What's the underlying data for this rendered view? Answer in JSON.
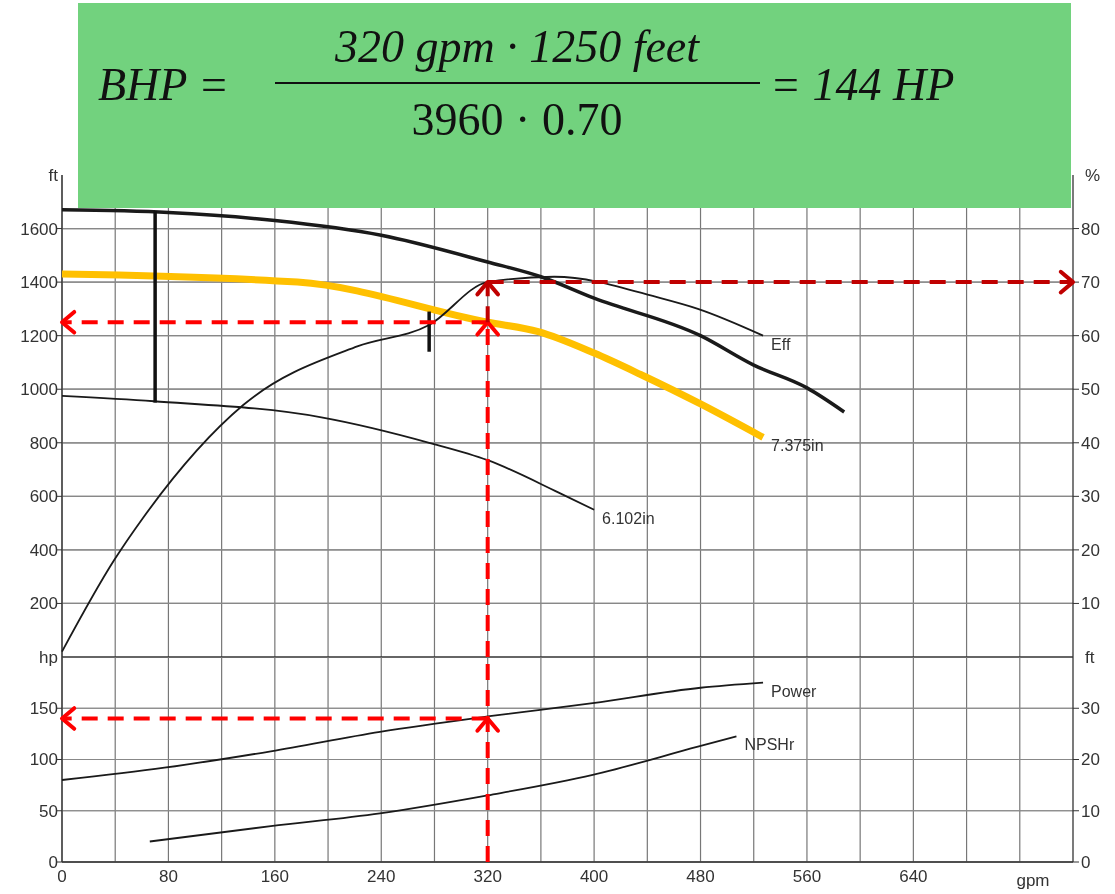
{
  "chart_data": [
    {
      "type": "line",
      "ylabel": "ft",
      "y2label": "%",
      "xlim": [
        0,
        760
      ],
      "ylim": [
        0,
        1800
      ],
      "y2lim": [
        0,
        90
      ],
      "xticks": [
        0,
        {
          "value": 40,
          "label": null
        },
        80,
        {
          "value": 120,
          "label": null
        },
        160,
        {
          "value": 200,
          "label": null
        },
        240,
        {
          "value": 280,
          "label": null
        },
        320,
        {
          "value": 360,
          "label": null
        },
        400,
        {
          "value": 440,
          "label": null
        },
        480,
        {
          "value": 520,
          "label": null
        },
        560,
        {
          "value": 600,
          "label": null
        },
        640,
        {
          "value": 680,
          "label": null
        },
        {
          "value": 720,
          "label": null
        }
      ],
      "yticks": [
        200,
        400,
        600,
        800,
        1000,
        1200,
        1400,
        1600
      ],
      "y2ticks": [
        10,
        20,
        30,
        40,
        50,
        60,
        70,
        80
      ],
      "grid": true,
      "tick_labels": "y",
      "annotations": [
        "BHP =",
        "320 gpm · 1250 feet",
        "3960 · 0.70",
        "= 144 HP"
      ],
      "series": [
        {
          "color": "#1a1a1a",
          "x": [
            0,
            80,
            160,
            240,
            320,
            360,
            400,
            480,
            520,
            560,
            588
          ],
          "values": [
            1670,
            1660,
            1630,
            1575,
            1475,
            1420,
            1340,
            1200,
            1090,
            1005,
            915
          ]
        },
        {
          "name": "7.375in",
          "color": "#ffc000",
          "x": [
            0,
            177,
            320,
            358,
            400,
            435,
            480,
            527
          ],
          "values": [
            1430,
            1400,
            1250,
            1215,
            1135,
            1055,
            945,
            820
          ]
        },
        {
          "name": "6.102in",
          "color": "#1a1a1a",
          "x": [
            0,
            69,
            195,
            276,
            320,
            373,
            400
          ],
          "values": [
            975,
            955,
            895,
            800,
            735,
            615,
            550
          ]
        },
        {
          "name": "Eff",
          "color": "#1a1a1a",
          "axis": "y2",
          "x": [
            0,
            39,
            61,
            136,
            222,
            276,
            320,
            370,
            450,
            478,
            527
          ],
          "values": [
            1,
            18,
            26,
            47,
            58,
            62,
            70,
            71,
            67,
            65,
            60
          ]
        },
        {
          "color": "#111111",
          "x": [
            70,
            70
          ],
          "values": [
            1665,
            950
          ]
        },
        {
          "color": "#111111",
          "x": [
            276,
            276
          ],
          "values": [
            1290,
            1140
          ]
        }
      ],
      "ref_lines": [
        {
          "axis": "x",
          "value": 320,
          "color": "#ff0000",
          "line_style": "dashed"
        },
        {
          "axis": "y",
          "value": 1250,
          "color": "#ff0000",
          "line_style": "dashed"
        },
        {
          "axis": "y2",
          "value": 70,
          "color": "#c00000",
          "line_style": "dashed"
        }
      ]
    },
    {
      "type": "line",
      "ylabel": "hp",
      "y2label": "ft",
      "xlabel": "gpm",
      "xlim": [
        0,
        760
      ],
      "ylim": [
        0,
        200
      ],
      "y2lim": [
        0,
        40
      ],
      "xticks": [
        0,
        {
          "value": 40,
          "label": null
        },
        80,
        {
          "value": 120,
          "label": null
        },
        160,
        {
          "value": 200,
          "label": null
        },
        240,
        {
          "value": 280,
          "label": null
        },
        320,
        {
          "value": 360,
          "label": null
        },
        400,
        {
          "value": 440,
          "label": null
        },
        480,
        {
          "value": 520,
          "label": null
        },
        560,
        {
          "value": 600,
          "label": null
        },
        640,
        {
          "value": 680,
          "label": null
        },
        {
          "value": 720,
          "label": null
        }
      ],
      "yticks": [
        0,
        50,
        100,
        150
      ],
      "y2ticks": [
        0,
        10,
        20,
        30
      ],
      "grid": true,
      "series": [
        {
          "name": "Power",
          "color": "#1a1a1a",
          "x": [
            0,
            77,
            157,
            239,
            320,
            399,
            480,
            527
          ],
          "values": [
            80,
            92,
            108,
            127,
            142,
            155,
            170,
            175
          ]
        },
        {
          "name": "NPSHr",
          "color": "#1a1a1a",
          "axis": "y2",
          "x": [
            66,
            157,
            239,
            320,
            399,
            478,
            507
          ],
          "values": [
            4,
            7,
            9.5,
            13,
            17,
            22.5,
            24.5
          ]
        }
      ],
      "ref_lines": [
        {
          "axis": "x",
          "value": 320,
          "color": "#ff0000",
          "line_style": "dashed"
        },
        {
          "axis": "y",
          "value": 140,
          "color": "#ff0000",
          "line_style": "dashed"
        }
      ]
    }
  ]
}
